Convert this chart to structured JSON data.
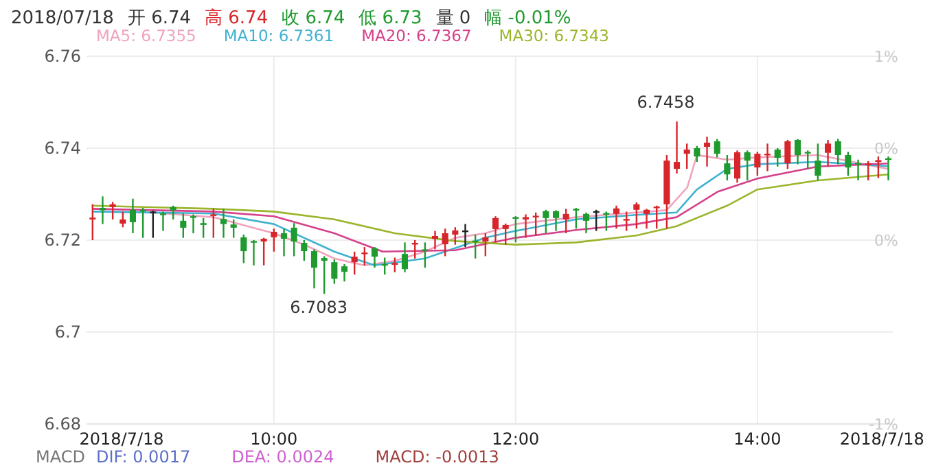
{
  "chart_data": {
    "type": "candlestick",
    "x": [
      8.5,
      8.5833,
      8.6667,
      8.75,
      8.8333,
      8.9167,
      9,
      9.0833,
      9.1667,
      9.25,
      9.3333,
      9.4167,
      9.5,
      9.5833,
      9.6667,
      9.75,
      9.8333,
      9.9167,
      10,
      10.0833,
      10.1667,
      10.25,
      10.3333,
      10.4167,
      10.5,
      10.5833,
      10.6667,
      10.75,
      10.8333,
      10.9167,
      11,
      11.0833,
      11.1667,
      11.25,
      11.3333,
      11.4167,
      11.5,
      11.5833,
      11.6667,
      11.75,
      11.8333,
      11.9167,
      12,
      12.0833,
      12.1667,
      12.25,
      12.3333,
      12.4167,
      12.5,
      12.5833,
      12.6667,
      12.75,
      12.8333,
      12.9167,
      13,
      13.0833,
      13.1667,
      13.25,
      13.3333,
      13.4167,
      13.5,
      13.5833,
      13.6667,
      13.75,
      13.8333,
      13.9167,
      14,
      14.0833,
      14.1667,
      14.25,
      14.3333,
      14.4167,
      14.5,
      14.5833,
      14.6667,
      14.75,
      14.8333,
      14.9167,
      15,
      15.0833
    ],
    "ohlc": [
      [
        6.7245,
        6.7278,
        6.72,
        6.7249
      ],
      [
        6.727,
        6.7295,
        6.7235,
        6.7265
      ],
      [
        6.7272,
        6.7283,
        6.7245,
        6.7278
      ],
      [
        6.7236,
        6.7262,
        6.7228,
        6.7245
      ],
      [
        6.7266,
        6.729,
        6.7215,
        6.7239
      ],
      [
        6.7266,
        6.727,
        6.7205,
        6.7264
      ],
      [
        6.7262,
        6.7264,
        6.7205,
        6.7262
      ],
      [
        6.7258,
        6.7262,
        6.722,
        6.7256
      ],
      [
        6.7272,
        6.7275,
        6.7245,
        6.7265
      ],
      [
        6.7242,
        6.7258,
        6.7205,
        6.7227
      ],
      [
        6.7252,
        6.7256,
        6.7215,
        6.725
      ],
      [
        6.7237,
        6.7248,
        6.7205,
        6.7233
      ],
      [
        6.7253,
        6.7268,
        6.7205,
        6.7256
      ],
      [
        6.7246,
        6.7268,
        6.7205,
        6.7235
      ],
      [
        6.7234,
        6.7245,
        6.7205,
        6.7227
      ],
      [
        6.7206,
        6.7212,
        6.715,
        6.7176
      ],
      [
        6.7198,
        6.72,
        6.7145,
        6.7196
      ],
      [
        6.7197,
        6.7205,
        6.7145,
        6.7203
      ],
      [
        6.7206,
        6.7225,
        6.7175,
        6.7218
      ],
      [
        6.7215,
        6.7225,
        6.7165,
        6.7203
      ],
      [
        6.7227,
        6.7237,
        6.7165,
        6.7197
      ],
      [
        6.7194,
        6.72,
        6.7155,
        6.7176
      ],
      [
        6.7176,
        6.718,
        6.7095,
        6.714
      ],
      [
        6.7161,
        6.7165,
        6.7083,
        6.7155
      ],
      [
        6.7152,
        6.7158,
        6.7105,
        6.7116
      ],
      [
        6.7143,
        6.7148,
        6.711,
        6.7131
      ],
      [
        6.7152,
        6.7175,
        6.7125,
        6.7164
      ],
      [
        6.7171,
        6.7185,
        6.7145,
        6.7173
      ],
      [
        6.7182,
        6.7185,
        6.714,
        6.7164
      ],
      [
        6.7148,
        6.7162,
        6.7125,
        6.7146
      ],
      [
        6.7148,
        6.7162,
        6.713,
        6.715
      ],
      [
        6.717,
        6.7195,
        6.713,
        6.7137
      ],
      [
        6.7192,
        6.72,
        6.716,
        6.7194
      ],
      [
        6.718,
        6.7195,
        6.714,
        6.7178
      ],
      [
        6.7203,
        6.722,
        6.718,
        6.7209
      ],
      [
        6.7191,
        6.7225,
        6.7165,
        6.7215
      ],
      [
        6.7212,
        6.7228,
        6.719,
        6.7221
      ],
      [
        6.7221,
        6.7235,
        6.7185,
        6.7221
      ],
      [
        6.7199,
        6.7212,
        6.716,
        6.7197
      ],
      [
        6.7197,
        6.7215,
        6.7165,
        6.7206
      ],
      [
        6.7224,
        6.7252,
        6.7195,
        6.7248
      ],
      [
        6.7224,
        6.7236,
        6.719,
        6.7233
      ],
      [
        6.725,
        6.7252,
        6.7195,
        6.7248
      ],
      [
        6.7245,
        6.7256,
        6.7205,
        6.725
      ],
      [
        6.7251,
        6.726,
        6.721,
        6.7253
      ],
      [
        6.7263,
        6.7266,
        6.7215,
        6.7248
      ],
      [
        6.7263,
        6.7265,
        6.722,
        6.7248
      ],
      [
        6.7245,
        6.7268,
        6.7215,
        6.7257
      ],
      [
        6.7268,
        6.727,
        6.7225,
        6.7266
      ],
      [
        6.7257,
        6.726,
        6.7215,
        6.7242
      ],
      [
        6.7263,
        6.7266,
        6.722,
        6.7263
      ],
      [
        6.7259,
        6.7262,
        6.722,
        6.7257
      ],
      [
        6.7257,
        6.7275,
        6.7225,
        6.7269
      ],
      [
        6.7244,
        6.7262,
        6.722,
        6.7246
      ],
      [
        6.7266,
        6.7282,
        6.7225,
        6.7278
      ],
      [
        6.7257,
        6.7268,
        6.7225,
        6.7266
      ],
      [
        6.7271,
        6.7275,
        6.7225,
        6.7273
      ],
      [
        6.7278,
        6.7385,
        6.7225,
        6.7373
      ],
      [
        6.7355,
        6.7458,
        6.7345,
        6.737
      ],
      [
        6.7388,
        6.741,
        6.7355,
        6.7397
      ],
      [
        6.74,
        6.7405,
        6.737,
        6.7382
      ],
      [
        6.7403,
        6.7425,
        6.736,
        6.7412
      ],
      [
        6.7415,
        6.742,
        6.738,
        6.7388
      ],
      [
        6.7367,
        6.7385,
        6.733,
        6.7343
      ],
      [
        6.7334,
        6.7395,
        6.7325,
        6.7391
      ],
      [
        6.7391,
        6.7395,
        6.733,
        6.7373
      ],
      [
        6.7358,
        6.7392,
        6.734,
        6.7388
      ],
      [
        6.7386,
        6.741,
        6.735,
        6.7388
      ],
      [
        6.7397,
        6.74,
        6.736,
        6.7379
      ],
      [
        6.7367,
        6.7418,
        6.7355,
        6.7415
      ],
      [
        6.7418,
        6.742,
        6.7365,
        6.7385
      ],
      [
        6.7392,
        6.7395,
        6.7355,
        6.739
      ],
      [
        6.7373,
        6.741,
        6.733,
        6.734
      ],
      [
        6.739,
        6.7418,
        6.736,
        6.741
      ],
      [
        6.7415,
        6.742,
        6.7365,
        6.7385
      ],
      [
        6.7385,
        6.7392,
        6.734,
        6.7358
      ],
      [
        6.7368,
        6.7375,
        6.733,
        6.7366
      ],
      [
        6.7365,
        6.7372,
        6.733,
        6.7367
      ],
      [
        6.737,
        6.7382,
        6.7335,
        6.7374
      ],
      [
        6.7378,
        6.7382,
        6.733,
        6.7376
      ]
    ],
    "colors": [
      "#d7262b",
      "#1f9a2e",
      "#d7262b",
      "#d7262b",
      "#1f9a2e",
      "#1f9a2e",
      "#222222",
      "#1f9a2e",
      "#1f9a2e",
      "#1f9a2e",
      "#1f9a2e",
      "#1f9a2e",
      "#d7262b",
      "#1f9a2e",
      "#1f9a2e",
      "#1f9a2e",
      "#1f9a2e",
      "#d7262b",
      "#d7262b",
      "#1f9a2e",
      "#1f9a2e",
      "#1f9a2e",
      "#1f9a2e",
      "#1f9a2e",
      "#1f9a2e",
      "#1f9a2e",
      "#d7262b",
      "#d7262b",
      "#1f9a2e",
      "#1f9a2e",
      "#d7262b",
      "#1f9a2e",
      "#d7262b",
      "#1f9a2e",
      "#d7262b",
      "#d7262b",
      "#d7262b",
      "#222222",
      "#1f9a2e",
      "#d7262b",
      "#d7262b",
      "#d7262b",
      "#1f9a2e",
      "#d7262b",
      "#d7262b",
      "#1f9a2e",
      "#1f9a2e",
      "#d7262b",
      "#1f9a2e",
      "#1f9a2e",
      "#222222",
      "#1f9a2e",
      "#d7262b",
      "#d7262b",
      "#d7262b",
      "#d7262b",
      "#d7262b",
      "#d7262b",
      "#d7262b",
      "#d7262b",
      "#1f9a2e",
      "#d7262b",
      "#1f9a2e",
      "#1f9a2e",
      "#d7262b",
      "#1f9a2e",
      "#d7262b",
      "#d7262b",
      "#1f9a2e",
      "#d7262b",
      "#1f9a2e",
      "#1f9a2e",
      "#1f9a2e",
      "#d7262b",
      "#1f9a2e",
      "#1f9a2e",
      "#1f9a2e",
      "#d7262b",
      "#d7262b",
      "#1f9a2e"
    ],
    "series": [
      {
        "name": "MA5: 6.7355",
        "type": "line",
        "color": "#f0a3bd",
        "x": [
          8.5,
          9,
          9.5,
          10,
          10.25,
          10.5,
          10.75,
          11,
          11.25,
          11.5,
          11.75,
          12,
          12.5,
          13,
          13.25,
          13.42,
          13.5,
          13.75,
          14,
          14.5,
          15.0833
        ],
        "values": [
          6.7262,
          6.726,
          6.725,
          6.7215,
          6.719,
          6.716,
          6.7145,
          6.7155,
          6.7175,
          6.7205,
          6.7215,
          6.7235,
          6.725,
          6.726,
          6.7265,
          6.7315,
          6.7385,
          6.7375,
          6.738,
          6.7385,
          6.7355
        ]
      },
      {
        "name": "MA10: 6.7361",
        "type": "line",
        "color": "#3fb2d0",
        "x": [
          8.5,
          9.5,
          10,
          10.5,
          10.83,
          11.25,
          11.75,
          12,
          12.5,
          13,
          13.33,
          13.5,
          13.75,
          14,
          14.5,
          15.0833
        ],
        "values": [
          6.7262,
          6.7258,
          6.7235,
          6.7175,
          6.7145,
          6.716,
          6.7205,
          6.722,
          6.7245,
          6.7255,
          6.726,
          6.731,
          6.7355,
          6.7365,
          6.737,
          6.7361
        ]
      },
      {
        "name": "MA20: 6.7367",
        "type": "line",
        "color": "#d6408a",
        "x": [
          8.5,
          9.5,
          10,
          10.5,
          10.9,
          11.5,
          12,
          12.5,
          13,
          13.33,
          13.67,
          14,
          14.5,
          15.0833
        ],
        "values": [
          6.7268,
          6.7262,
          6.7252,
          6.7215,
          6.7175,
          6.7178,
          6.7205,
          6.7222,
          6.7235,
          6.725,
          6.7305,
          6.7334,
          6.736,
          6.7367
        ]
      },
      {
        "name": "MA30: 6.7343",
        "type": "line",
        "color": "#9ab52c",
        "x": [
          8.5,
          9.5,
          10,
          10.5,
          11,
          11.5,
          12,
          12.5,
          13,
          13.33,
          13.75,
          14,
          14.5,
          15.0833
        ],
        "values": [
          6.7275,
          6.7268,
          6.7262,
          6.7245,
          6.7215,
          6.7198,
          6.719,
          6.7195,
          6.721,
          6.723,
          6.7275,
          6.731,
          6.733,
          6.7343
        ]
      }
    ],
    "xlim": [
      8.45,
      15.12
    ],
    "xticks": [
      {
        "value": 8.74,
        "label": "2018/7/18"
      },
      {
        "value": 10,
        "label": "10:00"
      },
      {
        "value": 12,
        "label": "12:00"
      },
      {
        "value": 14,
        "label": "14:00"
      },
      {
        "value": 15.03,
        "label": "2018/7/18"
      }
    ],
    "ylim": [
      6.68,
      6.76
    ],
    "yticks": [
      6.68,
      6.7,
      6.72,
      6.74,
      6.76
    ],
    "y2lim": [
      -1,
      1
    ],
    "y2ticks": [
      {
        "value": 1,
        "label": "1%"
      },
      {
        "value": 0.5,
        "label": "0%"
      },
      {
        "value": 0,
        "label": "0%"
      },
      {
        "value": -1,
        "label": "-1%"
      }
    ],
    "grid": true,
    "legend": "top",
    "annotations": [
      {
        "text": "6.7458",
        "x": 13.3333,
        "y": 6.7458
      },
      {
        "text": "6.7083",
        "x": 10.4167,
        "y": 6.7083
      },
      "2018/07/18",
      "开 6.74",
      "高 6.74",
      "收 6.74",
      "低 6.73",
      "量 0",
      "幅 -0.01%",
      "MACD",
      "DIF: 0.0017",
      "DEA: 0.0024",
      "MACD: -0.0013"
    ]
  }
}
